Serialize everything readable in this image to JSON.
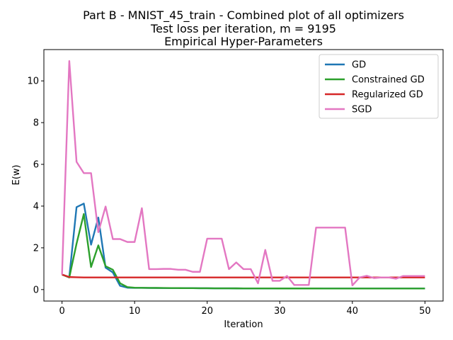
{
  "chart_data": {
    "type": "line",
    "title": [
      "Part B - MNIST_45_train - Combined plot of all optimizers",
      "Test loss per iteration,  m =  9195",
      "Empirical Hyper-Parameters"
    ],
    "xlabel": "Iteration",
    "ylabel": "E(w)",
    "xlim": [
      -2.5,
      52.5
    ],
    "ylim": [
      -0.55,
      11.5
    ],
    "xticks": [
      0,
      10,
      20,
      30,
      40,
      50
    ],
    "yticks": [
      0,
      2,
      4,
      6,
      8,
      10
    ],
    "legend_position": "top-right",
    "x": [
      0,
      1,
      2,
      3,
      4,
      5,
      6,
      7,
      8,
      9,
      10,
      11,
      12,
      13,
      14,
      15,
      16,
      17,
      18,
      19,
      20,
      21,
      22,
      23,
      24,
      25,
      26,
      27,
      28,
      29,
      30,
      31,
      32,
      33,
      34,
      35,
      36,
      37,
      38,
      39,
      40,
      41,
      42,
      43,
      44,
      45,
      46,
      47,
      48,
      49,
      50
    ],
    "series": [
      {
        "name": "GD",
        "color": "#1f77b4",
        "values": [
          0.72,
          0.6,
          3.95,
          4.12,
          2.15,
          3.45,
          1.05,
          0.82,
          0.18,
          0.09,
          0.08,
          0.08,
          0.075,
          0.075,
          0.07,
          0.07,
          0.07,
          0.068,
          0.066,
          0.064,
          0.062,
          0.06,
          0.06,
          0.058,
          0.057,
          0.056,
          0.055,
          0.055,
          0.054,
          0.054,
          0.053,
          0.053,
          0.053,
          0.052,
          0.052,
          0.052,
          0.051,
          0.051,
          0.051,
          0.05,
          0.05,
          0.05,
          0.05,
          0.05,
          0.05,
          0.05,
          0.05,
          0.05,
          0.05,
          0.05,
          0.05
        ]
      },
      {
        "name": "Constrained GD",
        "color": "#2ca02c",
        "values": [
          0.72,
          0.58,
          2.2,
          3.62,
          1.08,
          2.12,
          1.12,
          0.95,
          0.3,
          0.12,
          0.09,
          0.085,
          0.08,
          0.078,
          0.075,
          0.072,
          0.07,
          0.068,
          0.066,
          0.064,
          0.062,
          0.06,
          0.06,
          0.058,
          0.057,
          0.056,
          0.055,
          0.055,
          0.054,
          0.054,
          0.053,
          0.053,
          0.053,
          0.052,
          0.052,
          0.052,
          0.051,
          0.051,
          0.051,
          0.05,
          0.05,
          0.05,
          0.05,
          0.05,
          0.05,
          0.05,
          0.05,
          0.05,
          0.05,
          0.05,
          0.05
        ]
      },
      {
        "name": "Regularized GD",
        "color": "#d62728",
        "values": [
          0.72,
          0.6,
          0.59,
          0.58,
          0.58,
          0.58,
          0.58,
          0.58,
          0.58,
          0.58,
          0.58,
          0.58,
          0.58,
          0.58,
          0.58,
          0.58,
          0.58,
          0.58,
          0.58,
          0.58,
          0.58,
          0.58,
          0.58,
          0.58,
          0.58,
          0.58,
          0.58,
          0.58,
          0.58,
          0.58,
          0.58,
          0.58,
          0.58,
          0.58,
          0.58,
          0.58,
          0.58,
          0.58,
          0.58,
          0.58,
          0.58,
          0.58,
          0.58,
          0.58,
          0.58,
          0.58,
          0.58,
          0.58,
          0.58,
          0.58,
          0.58
        ]
      },
      {
        "name": "SGD",
        "color": "#e377c2",
        "values": [
          0.72,
          10.95,
          6.12,
          5.58,
          5.58,
          2.75,
          3.98,
          2.42,
          2.42,
          2.28,
          2.28,
          3.9,
          0.98,
          0.98,
          0.99,
          0.99,
          0.95,
          0.95,
          0.85,
          0.85,
          2.44,
          2.44,
          2.44,
          0.98,
          1.3,
          0.98,
          0.98,
          0.3,
          1.9,
          0.42,
          0.42,
          0.65,
          0.22,
          0.22,
          0.22,
          2.97,
          2.97,
          2.97,
          2.97,
          2.97,
          0.2,
          0.58,
          0.66,
          0.55,
          0.58,
          0.58,
          0.52,
          0.65,
          0.65,
          0.65,
          0.65
        ]
      }
    ]
  }
}
